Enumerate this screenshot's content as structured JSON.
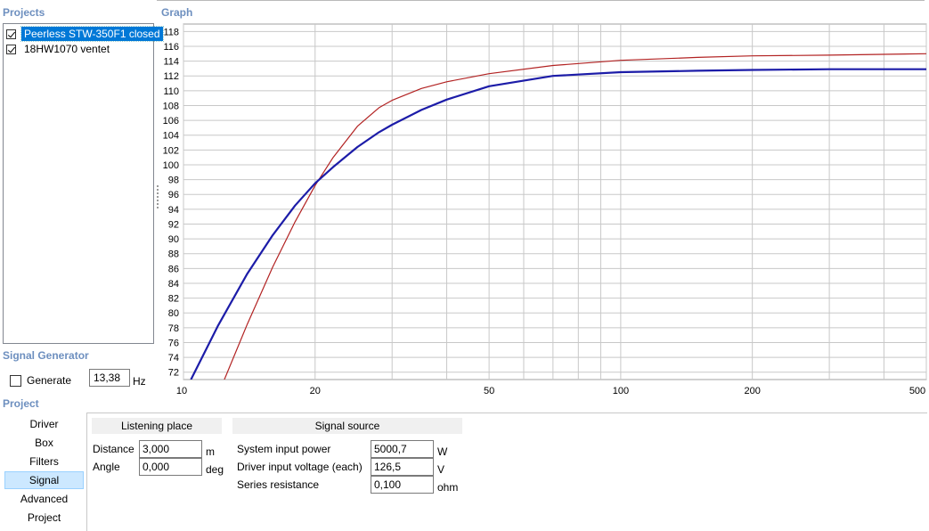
{
  "projects": {
    "title": "Projects",
    "items": [
      {
        "label": "Peerless STW-350F1 closed",
        "checked": true,
        "selected": true
      },
      {
        "label": "18HW1070 ventet",
        "checked": true,
        "selected": false
      }
    ]
  },
  "graph": {
    "title": "Graph"
  },
  "signal_generator": {
    "title": "Signal Generator",
    "generate_label": "Generate",
    "generate_checked": false,
    "frequency": "13,38",
    "frequency_unit": "Hz"
  },
  "project_nav": {
    "title": "Project",
    "items": [
      "Driver",
      "Box",
      "Filters",
      "Signal",
      "Advanced",
      "Project"
    ],
    "selected": "Signal"
  },
  "listening_place": {
    "title": "Listening place",
    "distance_label": "Distance",
    "distance_value": "3,000",
    "distance_unit": "m",
    "angle_label": "Angle",
    "angle_value": "0,000",
    "angle_unit": "deg"
  },
  "signal_source": {
    "title": "Signal source",
    "power_label": "System input power",
    "power_value": "5000,7",
    "power_unit": "W",
    "voltage_label": "Driver input voltage (each)",
    "voltage_value": "126,5",
    "voltage_unit": "V",
    "resistance_label": "Series resistance",
    "resistance_value": "0,100",
    "resistance_unit": "ohm"
  },
  "colors": {
    "section_title": "#6d8fbf",
    "series_1": "#b22222",
    "series_2": "#1c1ca8",
    "selection": "#0078d7"
  },
  "chart_data": {
    "type": "line",
    "xscale": "log",
    "xlim": [
      10,
      500
    ],
    "ylim": [
      71,
      119
    ],
    "x_ticks": [
      10,
      20,
      50,
      100,
      200,
      500
    ],
    "y_ticks": [
      72,
      74,
      76,
      78,
      80,
      82,
      84,
      86,
      88,
      90,
      92,
      94,
      96,
      98,
      100,
      102,
      104,
      106,
      108,
      110,
      112,
      114,
      116,
      118
    ],
    "grid": true,
    "series": [
      {
        "color": "#b22222",
        "x": [
          12.4,
          14,
          16,
          18,
          20,
          22,
          25,
          28,
          30,
          35,
          40,
          50,
          70,
          100,
          150,
          200,
          300,
          500
        ],
        "y": [
          71,
          78.5,
          86.2,
          92.3,
          97.2,
          101,
          105.2,
          107.7,
          108.7,
          110.3,
          111.2,
          112.3,
          113.4,
          114.1,
          114.5,
          114.7,
          114.8,
          115.0
        ]
      },
      {
        "color": "#1c1ca8",
        "x": [
          10.4,
          12,
          14,
          16,
          18,
          20,
          22,
          25,
          28,
          30,
          35,
          40,
          50,
          70,
          100,
          150,
          200,
          300,
          500
        ],
        "y": [
          71,
          78.3,
          85.3,
          90.5,
          94.5,
          97.5,
          99.7,
          102.4,
          104.4,
          105.4,
          107.4,
          108.8,
          110.6,
          112.0,
          112.5,
          112.7,
          112.8,
          112.9,
          112.9
        ]
      }
    ]
  }
}
